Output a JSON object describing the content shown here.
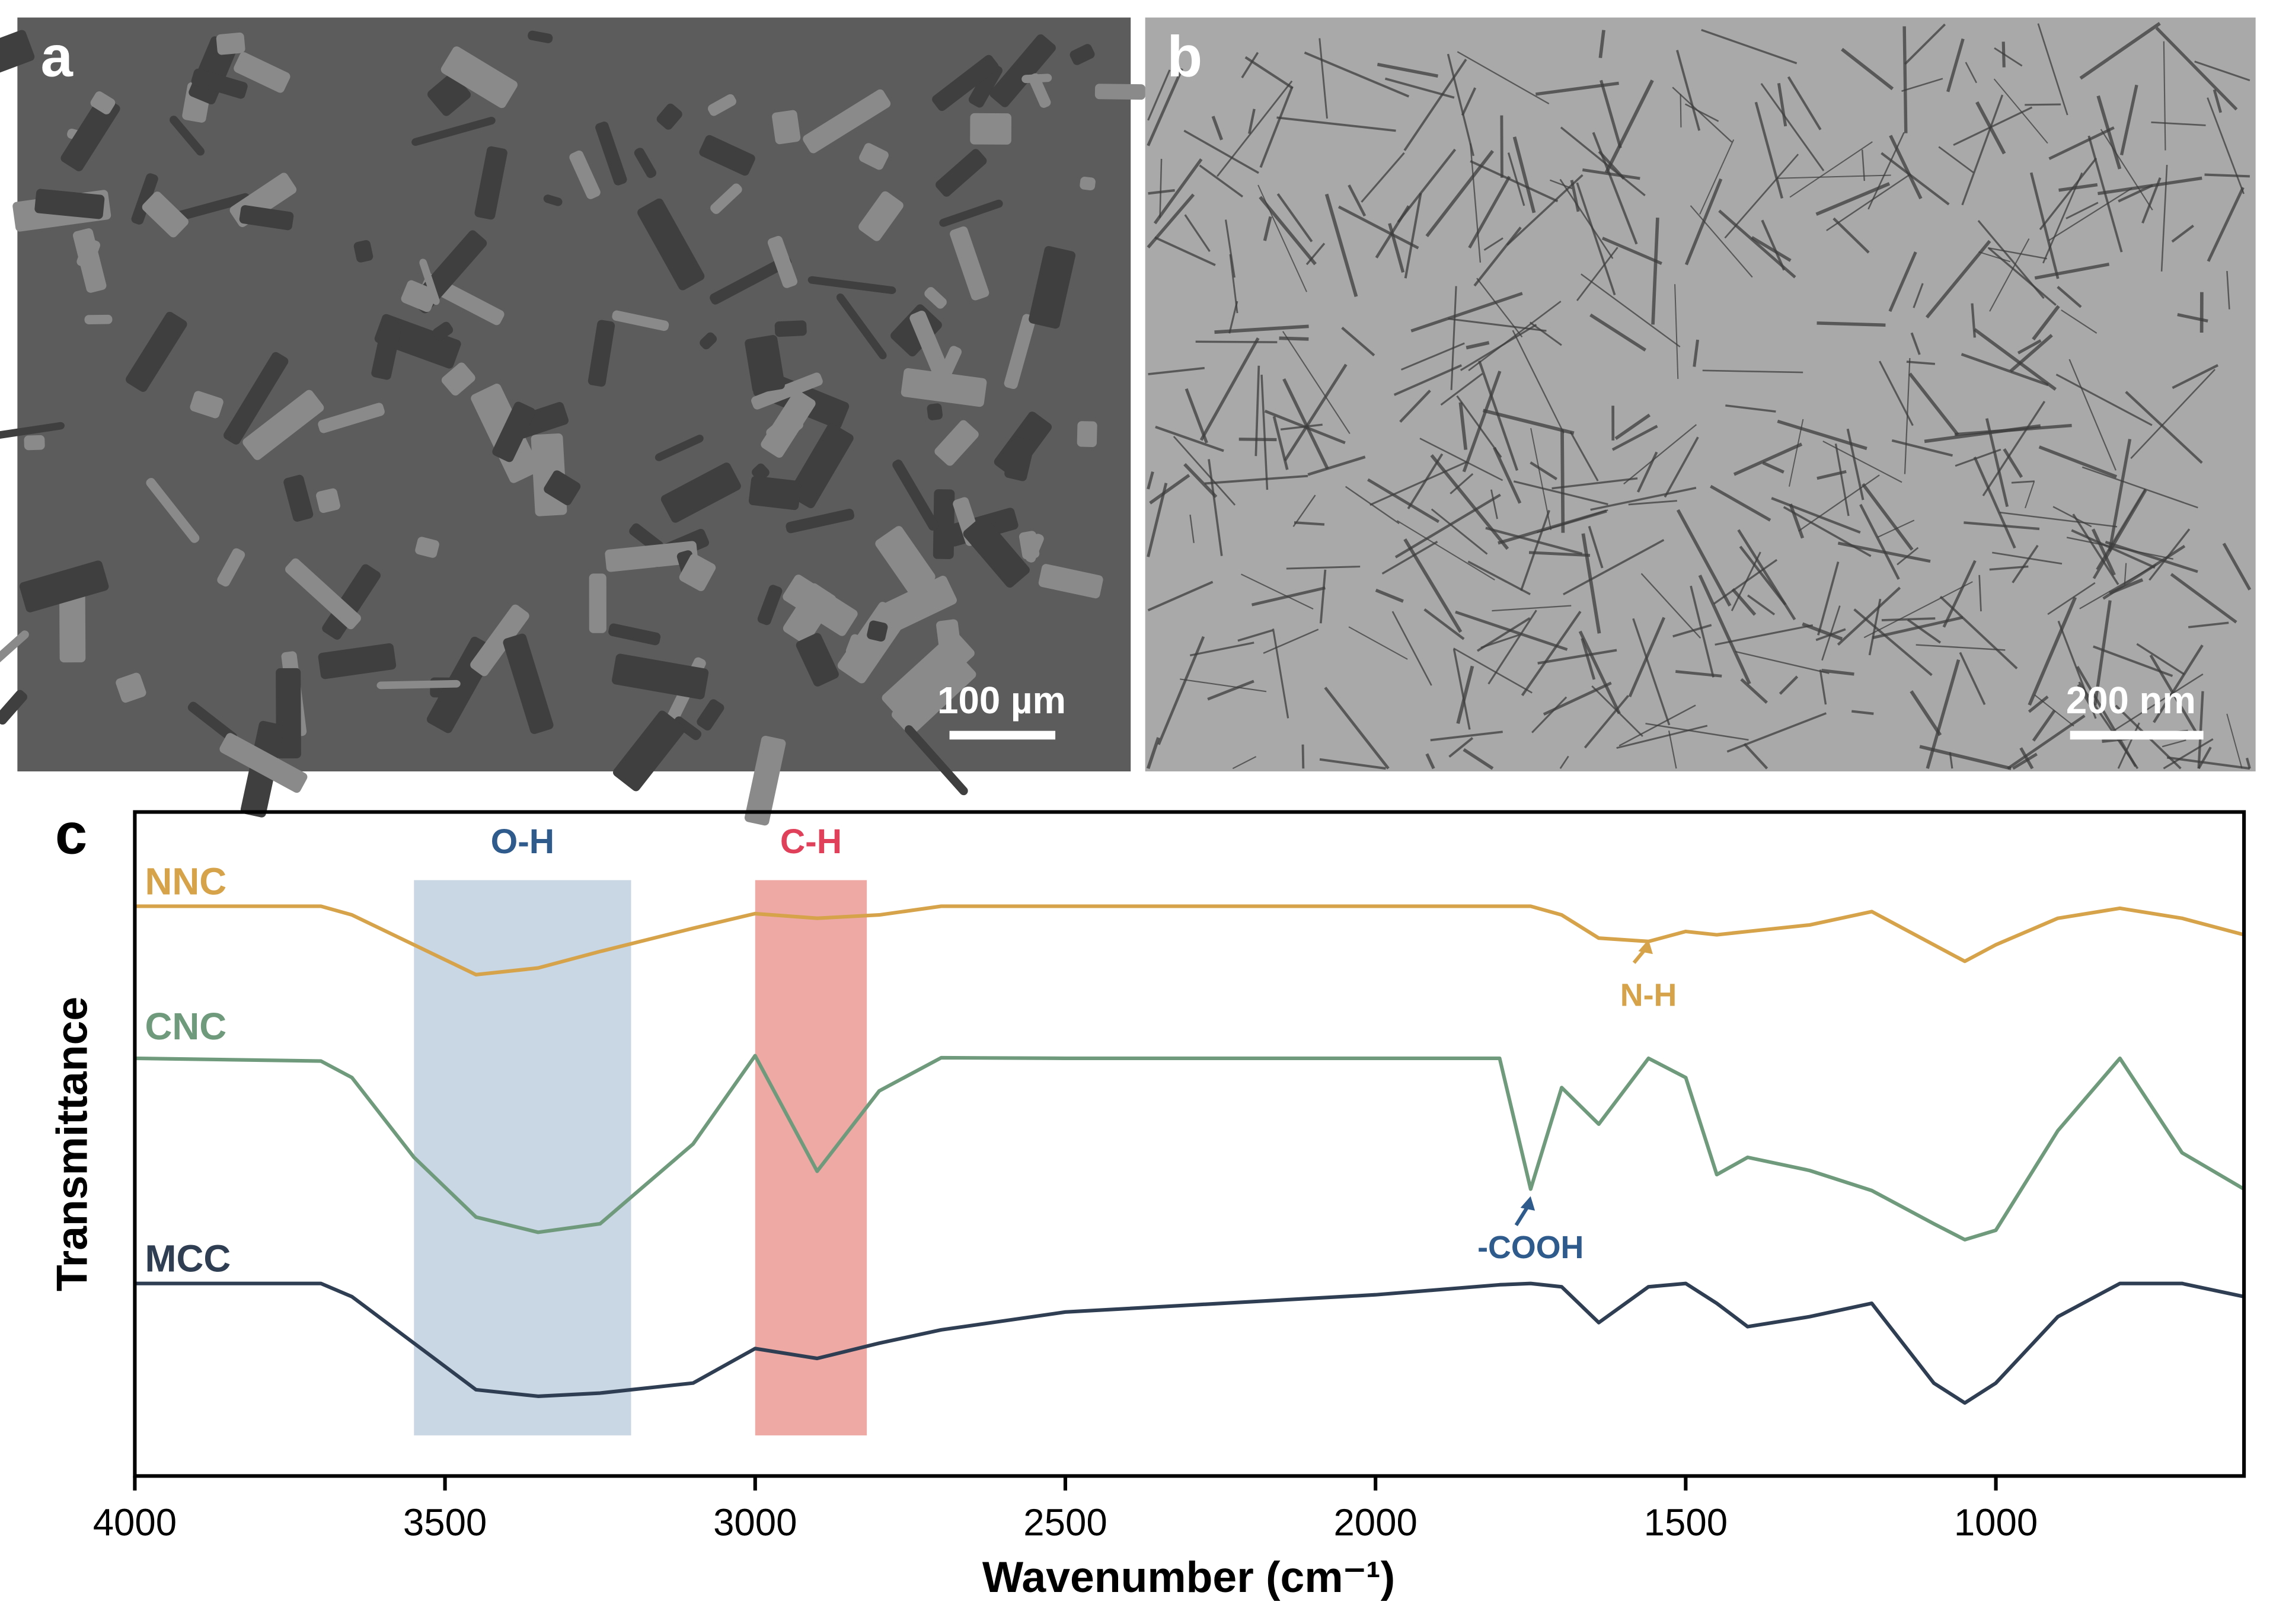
{
  "panels": [
    {
      "label": "a",
      "scale_bar": "100 µm"
    },
    {
      "label": "b",
      "scale_bar": "200 nm"
    }
  ],
  "chart_data": {
    "type": "line",
    "panel_label": "c",
    "xlabel": "Wavenumber (cm⁻¹)",
    "ylabel": "Transmittance",
    "xlim": [
      4000,
      600
    ],
    "xticks": [
      4000,
      3500,
      3000,
      2500,
      2000,
      1500,
      1000
    ],
    "ylim": [
      0,
      100
    ],
    "x": [
      4000,
      3700,
      3650,
      3550,
      3450,
      3350,
      3250,
      3100,
      3000,
      2900,
      2800,
      2700,
      2500,
      2000,
      1800,
      1750,
      1700,
      1640,
      1560,
      1500,
      1450,
      1400,
      1300,
      1200,
      1100,
      1050,
      1000,
      900,
      800,
      700,
      600
    ],
    "series": [
      {
        "name": "NNC",
        "color": "#d6a34a",
        "values": [
          85.8,
          85.8,
          84.5,
          80,
          75.5,
          76.5,
          79,
          82.5,
          84.7,
          84,
          84.5,
          85.8,
          85.8,
          85.8,
          85.8,
          85.8,
          84.5,
          81,
          80.5,
          82,
          81.5,
          82,
          83,
          85,
          80,
          77.5,
          80,
          84,
          85.5,
          84,
          81.5
        ]
      },
      {
        "name": "CNC",
        "color": "#6f9a7c",
        "values": [
          62.9,
          62.5,
          60,
          48,
          39,
          36.7,
          38,
          50,
          63.3,
          45.9,
          58,
          63,
          62.9,
          62.9,
          62.9,
          43.2,
          58.5,
          53,
          62.9,
          60,
          45.4,
          48,
          46,
          43,
          38,
          35.6,
          37,
          52,
          62.9,
          48.7,
          43.2
        ]
      },
      {
        "name": "MCC",
        "color": "#2f3e52",
        "values": [
          29,
          29,
          27,
          20,
          13,
          12,
          12.5,
          14,
          19.2,
          17.7,
          20,
          22,
          24.7,
          27.3,
          28.8,
          29,
          28.5,
          23.1,
          28.5,
          29,
          26,
          22.5,
          24,
          26,
          14,
          11,
          14,
          24,
          29,
          29,
          27
        ]
      }
    ],
    "regions": [
      {
        "label": "O-H",
        "from": 3550,
        "to": 3200,
        "color": "#c9d6e3",
        "label_color": "#2e5a8c"
      },
      {
        "label": "C-H",
        "from": 3000,
        "to": 2820,
        "color": "#eea9a5",
        "label_color": "#e0405a"
      }
    ],
    "annotations": [
      {
        "text": "N-H",
        "x": 1560,
        "color": "#d6a34a"
      },
      {
        "text": "-COOH",
        "x": 1750,
        "color": "#2e5a8c"
      }
    ]
  }
}
